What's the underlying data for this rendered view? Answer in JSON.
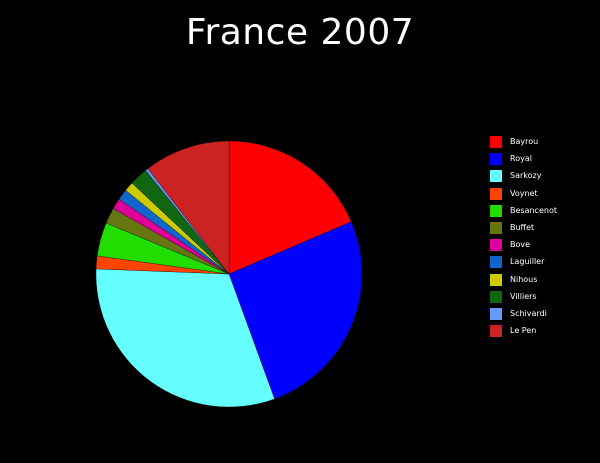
{
  "chart_data": {
    "type": "pie",
    "title": "France 2007",
    "legend_position": "right",
    "slices": [
      {
        "label": "Bayrou",
        "value": 18.57,
        "color": "#ff0000"
      },
      {
        "label": "Royal",
        "value": 25.87,
        "color": "#0000ff"
      },
      {
        "label": "Sarkozy",
        "value": 31.18,
        "color": "#66ffff"
      },
      {
        "label": "Voynet",
        "value": 1.57,
        "color": "#ff4400"
      },
      {
        "label": "Besancenot",
        "value": 4.08,
        "color": "#22dd00"
      },
      {
        "label": "Buffet",
        "value": 1.93,
        "color": "#667711"
      },
      {
        "label": "Bove",
        "value": 1.32,
        "color": "#dd0099"
      },
      {
        "label": "Laguiller",
        "value": 1.33,
        "color": "#1166cc"
      },
      {
        "label": "Nihous",
        "value": 1.15,
        "color": "#cccc00"
      },
      {
        "label": "Villiers",
        "value": 2.23,
        "color": "#116611"
      },
      {
        "label": "Schivardi",
        "value": 0.34,
        "color": "#6699ff"
      },
      {
        "label": "Le Pen",
        "value": 10.44,
        "color": "#cc2222"
      }
    ]
  }
}
